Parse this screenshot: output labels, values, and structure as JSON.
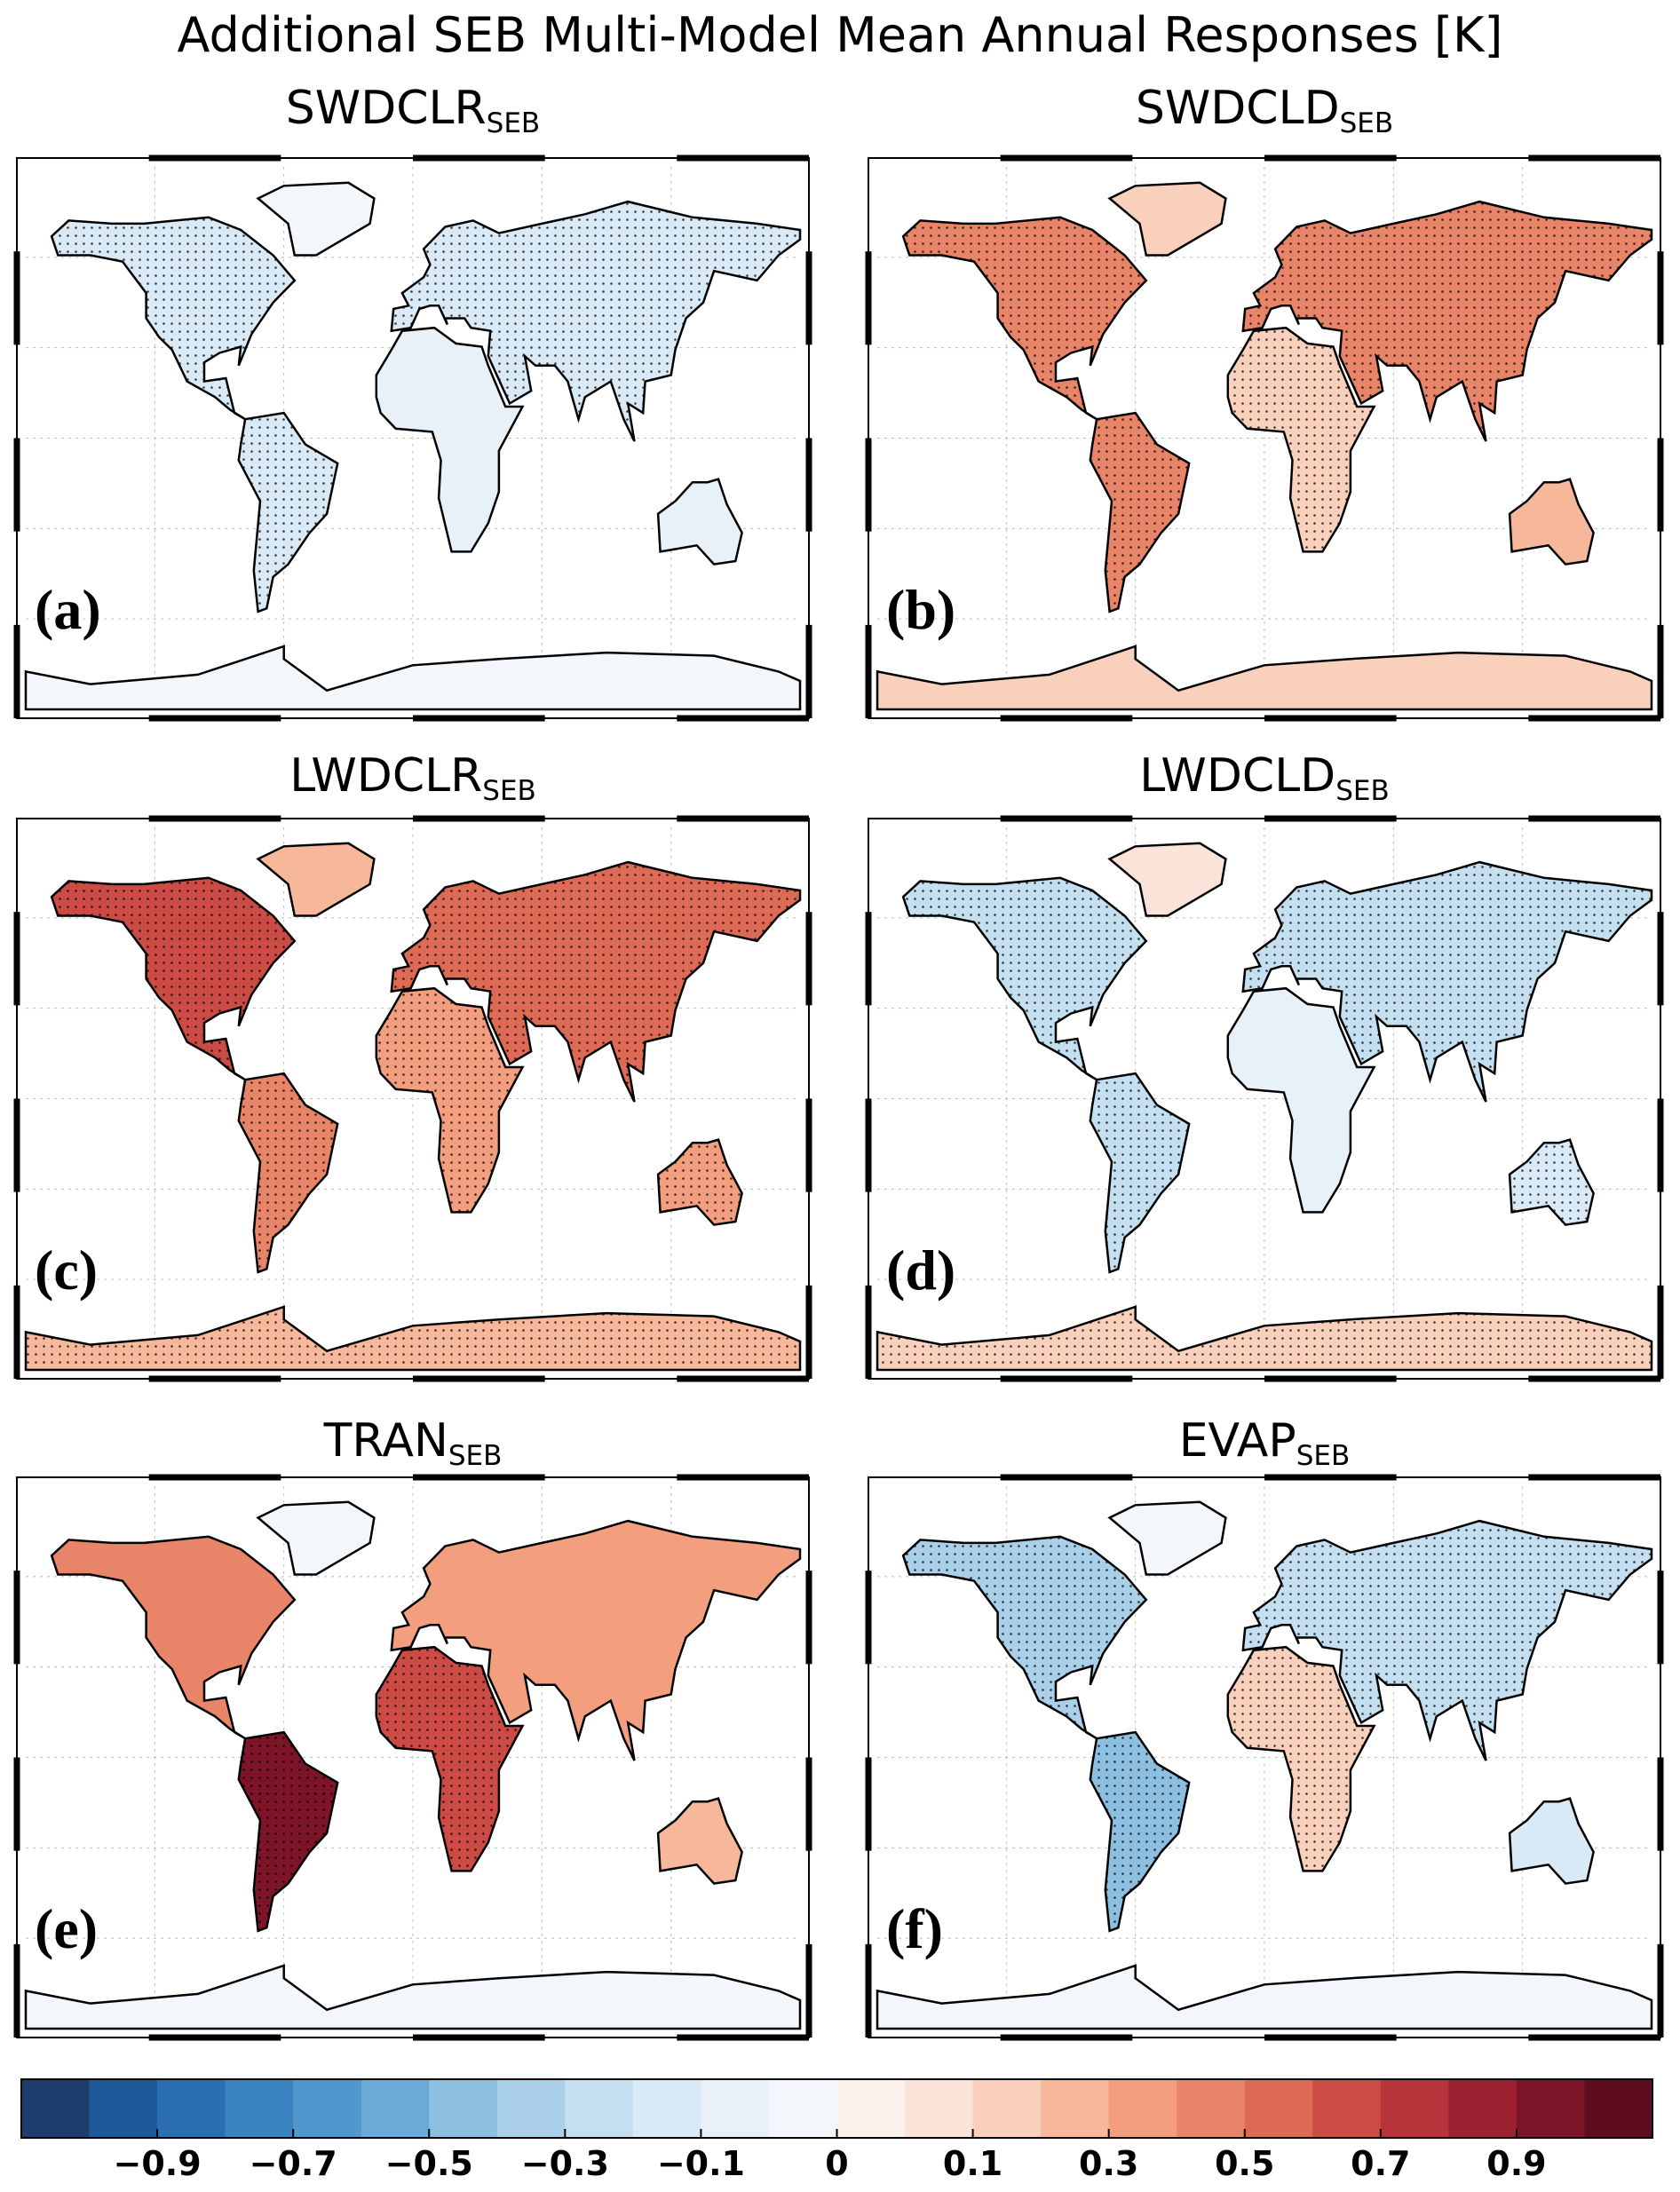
{
  "title": "Additional SEB Multi-Model Mean Annual Responses [K]",
  "panels": [
    {
      "title": "SWDCLR",
      "subscript": "SEB",
      "label": "(a)",
      "values": [
        -0.15,
        -0.05,
        -0.15,
        -0.15,
        -0.1,
        -0.1,
        -0.05
      ]
    },
    {
      "title": "SWDCLD",
      "subscript": "SEB",
      "label": "(b)",
      "values": [
        0.4,
        0.1,
        0.4,
        0.4,
        0.15,
        0.2,
        0.1
      ]
    },
    {
      "title": "LWDCLR",
      "subscript": "SEB",
      "label": "(c)",
      "values": [
        0.6,
        0.2,
        0.45,
        0.55,
        0.3,
        0.35,
        0.25
      ]
    },
    {
      "title": "LWDCLD",
      "subscript": "SEB",
      "label": "(d)",
      "values": [
        -0.25,
        0.05,
        -0.3,
        -0.25,
        -0.1,
        -0.15,
        0.1
      ]
    },
    {
      "title": "TRAN",
      "subscript": "SEB",
      "label": "(e)",
      "values": [
        0.4,
        -0.05,
        0.9,
        0.35,
        0.6,
        0.2,
        -0.05
      ]
    },
    {
      "title": "EVAP",
      "subscript": "SEB",
      "label": "(f)",
      "values": [
        -0.35,
        -0.05,
        -0.5,
        -0.3,
        0.1,
        -0.15,
        -0.05
      ]
    }
  ],
  "colorbar": {
    "levels": [
      -1.1,
      -1.0,
      -0.9,
      -0.8,
      -0.7,
      -0.6,
      -0.5,
      -0.4,
      -0.3,
      -0.2,
      -0.1,
      -0.05,
      0,
      0.05,
      0.1,
      0.2,
      0.3,
      0.4,
      0.5,
      0.6,
      0.7,
      0.8,
      0.9,
      1.0,
      1.1
    ],
    "colors": [
      "#1f3c6e",
      "#1d5a9a",
      "#2a6fb2",
      "#3a84c1",
      "#4f97cc",
      "#6aaad6",
      "#8dc0e0",
      "#a9d0e8",
      "#c4dff0",
      "#d9e9f5",
      "#e8f1f8",
      "#f3f6fa",
      "#fbf2ee",
      "#fbe3d9",
      "#f9d0bc",
      "#f6b79b",
      "#f29e7f",
      "#e88468",
      "#dd6a55",
      "#cc4c45",
      "#b8333a",
      "#9d2130",
      "#7e1428",
      "#5e0c1f"
    ],
    "ticks": [
      {
        "value": -0.9,
        "label": "−0.9"
      },
      {
        "value": -0.7,
        "label": "−0.7"
      },
      {
        "value": -0.5,
        "label": "−0.5"
      },
      {
        "value": -0.3,
        "label": "−0.3"
      },
      {
        "value": -0.1,
        "label": "−0.1"
      },
      0,
      0.1,
      0.3,
      0.5,
      0.7,
      0.9
    ]
  }
}
